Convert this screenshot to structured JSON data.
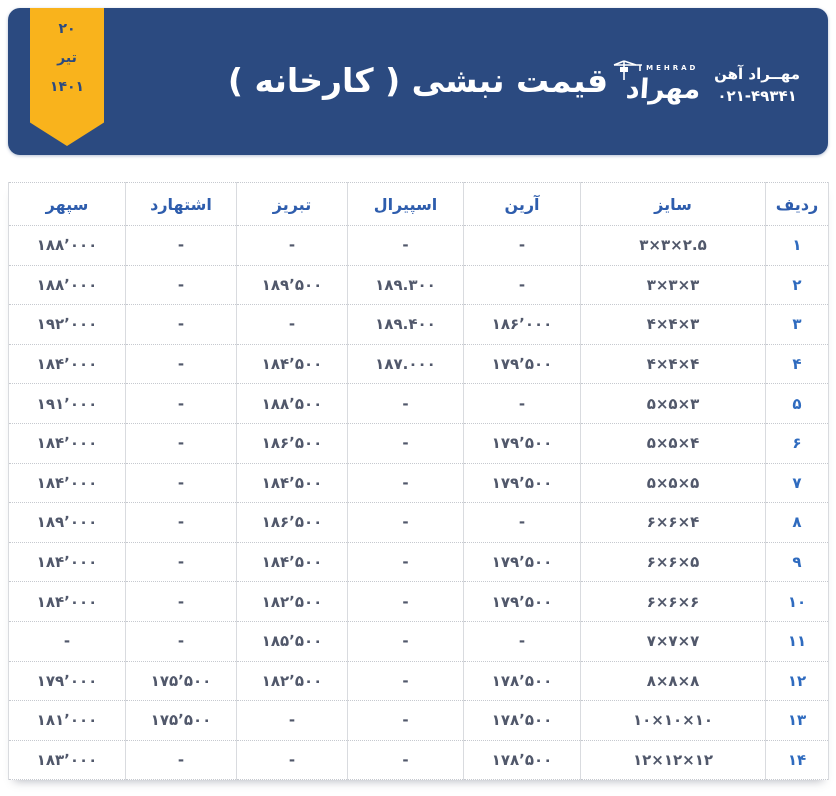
{
  "date_badge": {
    "day": "۲۰",
    "month": "تیر",
    "year": "۱۴۰۱"
  },
  "header": {
    "title": "قیمت نبشی ( کارخانه )",
    "logo": {
      "icon": "crane-icon",
      "brand_en": "MEHRAD",
      "brand_fa": "مهراد",
      "company": "مهــراد آهن",
      "phone": "۰۲۱-۴۹۳۴۱"
    }
  },
  "colors": {
    "header_navy": "#2b4a80",
    "ribbon_gold": "#f9b31c",
    "column_header_blue": "#2e5dad",
    "row_number_blue": "#2f6bbf",
    "cell_text": "#51586b"
  },
  "table": {
    "columns": [
      {
        "key": "no",
        "label": "ردیف"
      },
      {
        "key": "size",
        "label": "سایز"
      },
      {
        "key": "arian",
        "label": "آرین"
      },
      {
        "key": "spiral",
        "label": "اسپیرال"
      },
      {
        "key": "tabriz",
        "label": "تبریز"
      },
      {
        "key": "eshtehard",
        "label": "اشتهارد"
      },
      {
        "key": "sepehr",
        "label": "سپهر"
      }
    ],
    "rows": [
      {
        "no": "۱",
        "size": "۳×۳×۲.۵",
        "arian": "-",
        "spiral": "-",
        "tabriz": "-",
        "eshtehard": "-",
        "sepehr": "۱۸۸٬۰۰۰"
      },
      {
        "no": "۲",
        "size": "۳×۳×۳",
        "arian": "-",
        "spiral": "۱۸۹.۳۰۰",
        "tabriz": "۱۸۹٬۵۰۰",
        "eshtehard": "-",
        "sepehr": "۱۸۸٬۰۰۰"
      },
      {
        "no": "۳",
        "size": "۴×۴×۳",
        "arian": "۱۸۶٬۰۰۰",
        "spiral": "۱۸۹.۴۰۰",
        "tabriz": "-",
        "eshtehard": "-",
        "sepehr": "۱۹۲٬۰۰۰"
      },
      {
        "no": "۴",
        "size": "۴×۴×۴",
        "arian": "۱۷۹٬۵۰۰",
        "spiral": "۱۸۷.۰۰۰",
        "tabriz": "۱۸۴٬۵۰۰",
        "eshtehard": "-",
        "sepehr": "۱۸۴٬۰۰۰"
      },
      {
        "no": "۵",
        "size": "۵×۵×۳",
        "arian": "-",
        "spiral": "-",
        "tabriz": "۱۸۸٬۵۰۰",
        "eshtehard": "-",
        "sepehr": "۱۹۱٬۰۰۰"
      },
      {
        "no": "۶",
        "size": "۵×۵×۴",
        "arian": "۱۷۹٬۵۰۰",
        "spiral": "-",
        "tabriz": "۱۸۶٬۵۰۰",
        "eshtehard": "-",
        "sepehr": "۱۸۴٬۰۰۰"
      },
      {
        "no": "۷",
        "size": "۵×۵×۵",
        "arian": "۱۷۹٬۵۰۰",
        "spiral": "-",
        "tabriz": "۱۸۴٬۵۰۰",
        "eshtehard": "-",
        "sepehr": "۱۸۴٬۰۰۰"
      },
      {
        "no": "۸",
        "size": "۶×۶×۴",
        "arian": "-",
        "spiral": "-",
        "tabriz": "۱۸۶٬۵۰۰",
        "eshtehard": "-",
        "sepehr": "۱۸۹٬۰۰۰"
      },
      {
        "no": "۹",
        "size": "۶×۶×۵",
        "arian": "۱۷۹٬۵۰۰",
        "spiral": "-",
        "tabriz": "۱۸۴٬۵۰۰",
        "eshtehard": "-",
        "sepehr": "۱۸۴٬۰۰۰"
      },
      {
        "no": "۱۰",
        "size": "۶×۶×۶",
        "arian": "۱۷۹٬۵۰۰",
        "spiral": "-",
        "tabriz": "۱۸۲٬۵۰۰",
        "eshtehard": "-",
        "sepehr": "۱۸۴٬۰۰۰"
      },
      {
        "no": "۱۱",
        "size": "۷×۷×۷",
        "arian": "-",
        "spiral": "-",
        "tabriz": "۱۸۵٬۵۰۰",
        "eshtehard": "-",
        "sepehr": "-"
      },
      {
        "no": "۱۲",
        "size": "۸×۸×۸",
        "arian": "۱۷۸٬۵۰۰",
        "spiral": "-",
        "tabriz": "۱۸۲٬۵۰۰",
        "eshtehard": "۱۷۵٬۵۰۰",
        "sepehr": "۱۷۹٬۰۰۰"
      },
      {
        "no": "۱۳",
        "size": "۱۰×۱۰×۱۰",
        "arian": "۱۷۸٬۵۰۰",
        "spiral": "-",
        "tabriz": "-",
        "eshtehard": "۱۷۵٬۵۰۰",
        "sepehr": "۱۸۱٬۰۰۰"
      },
      {
        "no": "۱۴",
        "size": "۱۲×۱۲×۱۲",
        "arian": "۱۷۸٬۵۰۰",
        "spiral": "-",
        "tabriz": "-",
        "eshtehard": "-",
        "sepehr": "۱۸۳٬۰۰۰"
      }
    ]
  }
}
